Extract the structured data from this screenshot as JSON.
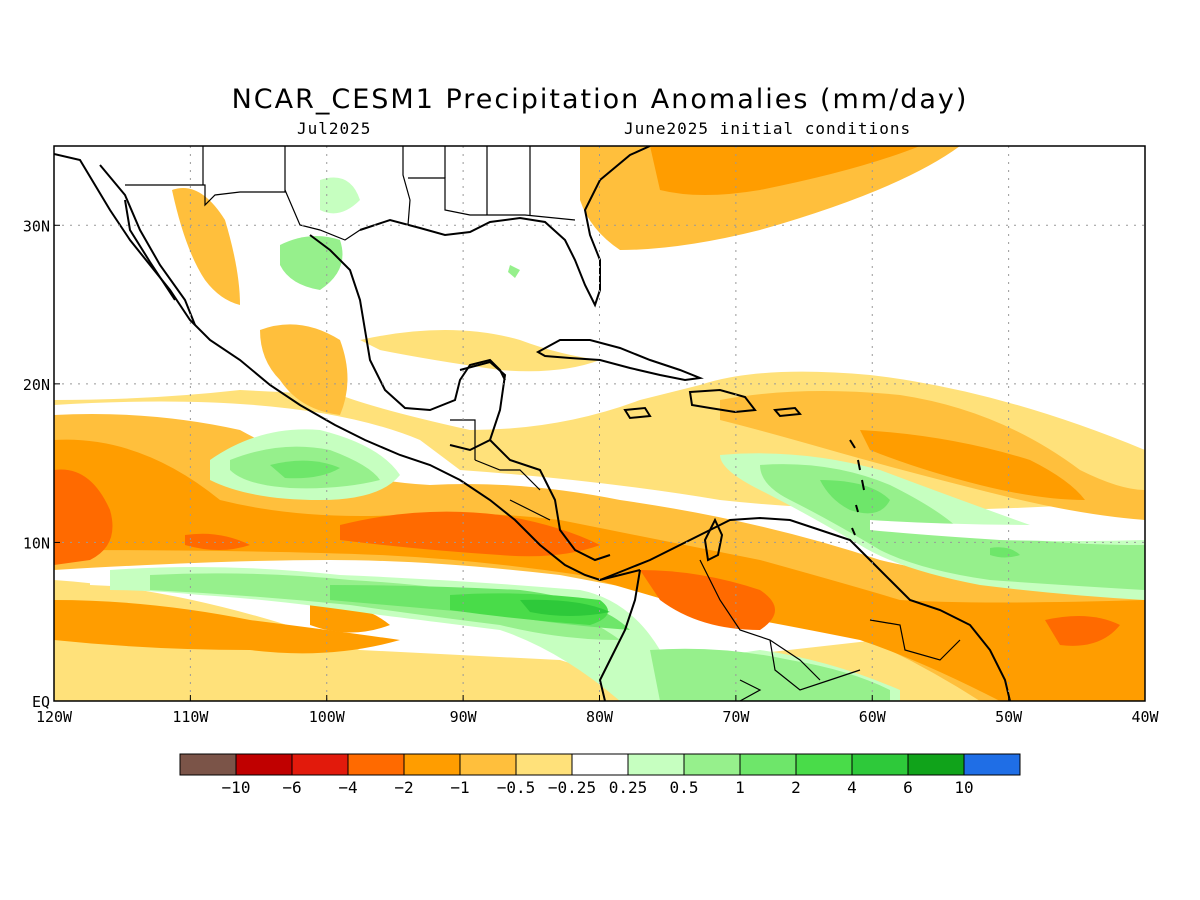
{
  "title": "NCAR_CESM1 Precipitation Anomalies (mm/day)",
  "subtitle_left": "Jul2025",
  "subtitle_right": "June2025 initial conditions",
  "map": {
    "lon_range": [
      -120,
      -40
    ],
    "lat_range": [
      0,
      35
    ],
    "grid": "dotted",
    "lon_ticks": [
      "120W",
      "110W",
      "100W",
      "90W",
      "80W",
      "70W",
      "60W",
      "50W",
      "40W"
    ],
    "lat_ticks": [
      "EQ",
      "10N",
      "20N",
      "30N"
    ]
  },
  "colorbar": {
    "colors": [
      "#7b5448",
      "#c00000",
      "#e21a0c",
      "#ff6a00",
      "#ff9d00",
      "#ffbf3c",
      "#ffe17a",
      "#ffffff",
      "#c6ffc0",
      "#96f08c",
      "#6ee66a",
      "#49dc49",
      "#2ec93a",
      "#10a31a",
      "#1f6ee6"
    ],
    "labels": [
      "-10",
      "-6",
      "-4",
      "-2",
      "-1",
      "-0.5",
      "-0.25",
      "0.25",
      "0.5",
      "1",
      "2",
      "4",
      "6",
      "10"
    ]
  }
}
